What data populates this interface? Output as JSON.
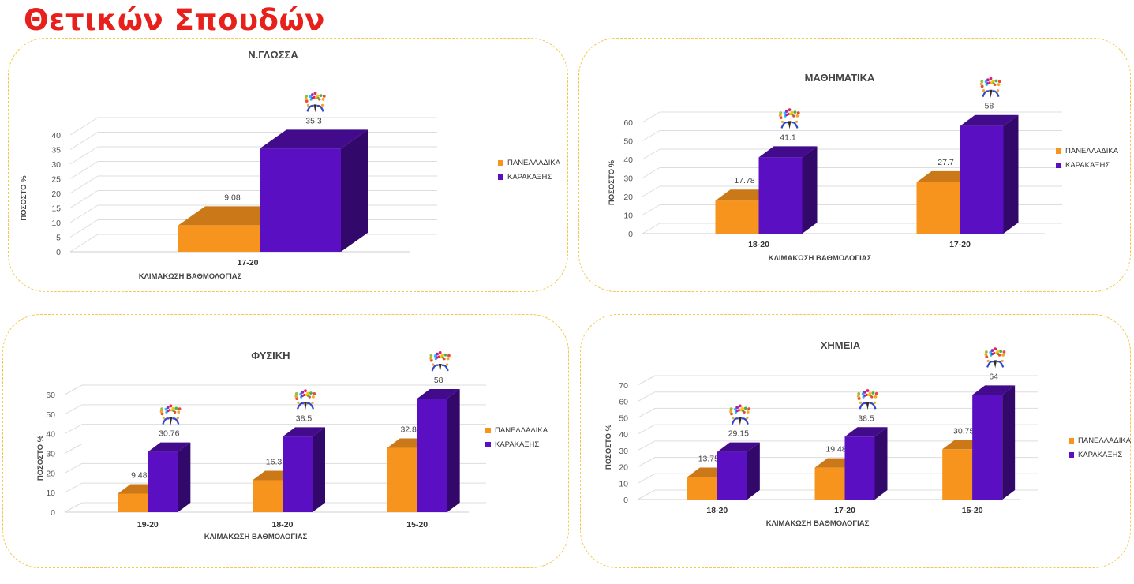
{
  "page_title": "Θετικών Σπουδών",
  "legend": {
    "national": "ΠΑΝΕΛΛΑΔΙΚΑ",
    "school": "ΚΑΡΑΚΑΞΗΣ"
  },
  "colors": {
    "national": "#f7941d",
    "school": "#5b0fc2",
    "title": "#e8201c",
    "frame": "#f2c94c"
  },
  "chart_data": [
    {
      "type": "bar",
      "title": "Ν.ΓΛΩΣΣΑ",
      "xlabel": "ΚΛΙΜΑΚΩΣΗ ΒΑΘΜΟΛΟΓΙΑΣ",
      "ylabel": "ΠΟΣΟΣΤΟ %",
      "ylim": [
        0,
        40
      ],
      "yticks": [
        "0",
        "5",
        "10",
        "15",
        "20",
        "25",
        "30",
        "35",
        "40"
      ],
      "categories": [
        "17-20"
      ],
      "series": [
        {
          "name": "ΠΑΝΕΛΛΑΔΙΚΑ",
          "values": [
            9.08
          ],
          "labels": [
            "9.08"
          ]
        },
        {
          "name": "ΚΑΡΑΚΑΞΗΣ",
          "values": [
            35.3
          ],
          "labels": [
            "35.3"
          ]
        }
      ],
      "legend_position": "right",
      "grid": true
    },
    {
      "type": "bar",
      "title": "ΜΑΘΗΜΑΤΙΚΑ",
      "xlabel": "ΚΛΙΜΑΚΩΣΗ ΒΑΘΜΟΛΟΓΙΑΣ",
      "ylabel": "ΠΟΣΟΣΤΟ %",
      "ylim": [
        0,
        60
      ],
      "yticks": [
        "0",
        "10",
        "20",
        "30",
        "40",
        "50",
        "60"
      ],
      "categories": [
        "18-20",
        "17-20"
      ],
      "series": [
        {
          "name": "ΠΑΝΕΛΛΑΔΙΚΑ",
          "values": [
            17.78,
            27.7
          ],
          "labels": [
            "17.78",
            "27.7"
          ]
        },
        {
          "name": "ΚΑΡΑΚΑΞΗΣ",
          "values": [
            41.1,
            58
          ],
          "labels": [
            "41.1",
            "58"
          ]
        }
      ],
      "legend_position": "right",
      "grid": true
    },
    {
      "type": "bar",
      "title": "ΦΥΣΙΚΗ",
      "xlabel": "ΚΛΙΜΑΚΩΣΗ ΒΑΘΜΟΛΟΓΙΑΣ",
      "ylabel": "ΠΟΣΟΣΤΟ %",
      "ylim": [
        0,
        60
      ],
      "yticks": [
        "0",
        "10",
        "20",
        "30",
        "40",
        "50",
        "60"
      ],
      "categories": [
        "19-20",
        "18-20",
        "15-20"
      ],
      "series": [
        {
          "name": "ΠΑΝΕΛΛΑΔΙΚΑ",
          "values": [
            9.48,
            16.3,
            32.8
          ],
          "labels": [
            "9.48",
            "16.3",
            "32.8"
          ]
        },
        {
          "name": "ΚΑΡΑΚΑΞΗΣ",
          "values": [
            30.76,
            38.5,
            58
          ],
          "labels": [
            "30.76",
            "38.5",
            "58"
          ]
        }
      ],
      "legend_position": "right",
      "grid": true
    },
    {
      "type": "bar",
      "title": "ΧΗΜΕΙΑ",
      "xlabel": "ΚΛΙΜΑΚΩΣΗ ΒΑΘΜΟΛΟΓΙΑΣ",
      "ylabel": "ΠΟΣΟΣΤΟ %",
      "ylim": [
        0,
        70
      ],
      "yticks": [
        "0",
        "10",
        "20",
        "30",
        "40",
        "50",
        "60",
        "70"
      ],
      "categories": [
        "18-20",
        "17-20",
        "15-20"
      ],
      "series": [
        {
          "name": "ΠΑΝΕΛΛΑΔΙΚΑ",
          "values": [
            13.75,
            19.48,
            30.75
          ],
          "labels": [
            "13.75",
            "19.48",
            "30.75"
          ]
        },
        {
          "name": "ΚΑΡΑΚΑΞΗΣ",
          "values": [
            29.15,
            38.5,
            64
          ],
          "labels": [
            "29.15",
            "38.5",
            "64"
          ]
        }
      ],
      "legend_position": "right",
      "grid": true
    }
  ]
}
